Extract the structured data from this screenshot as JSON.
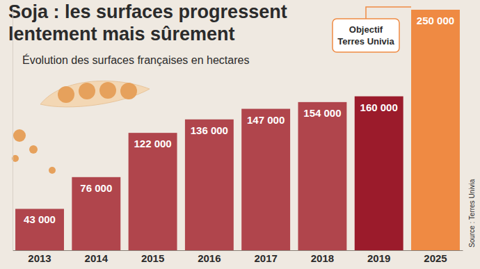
{
  "chart_data": {
    "type": "bar",
    "title": "Soja : les surfaces progressent lentement mais sûrement",
    "subtitle": "Évolution des surfaces françaises en hectares",
    "annotation": "Objectif Terres Univia",
    "source": "Source : Terres Univia",
    "categories": [
      "2013",
      "2014",
      "2015",
      "2016",
      "2017",
      "2018",
      "2019",
      "2025"
    ],
    "values": [
      43000,
      76000,
      122000,
      136000,
      147000,
      154000,
      160000,
      250000
    ],
    "value_labels": [
      "43 000",
      "76 000",
      "122 000",
      "136 000",
      "147 000",
      "154 000",
      "160 000",
      "250 000"
    ],
    "colors": [
      "#b0454c",
      "#b0454c",
      "#b0454c",
      "#b0454c",
      "#b0454c",
      "#b0454c",
      "#9b1b2b",
      "#ef8a43"
    ],
    "ylim": [
      0,
      250000
    ],
    "data_labels": true,
    "tick_labels": "x",
    "grid": false
  }
}
